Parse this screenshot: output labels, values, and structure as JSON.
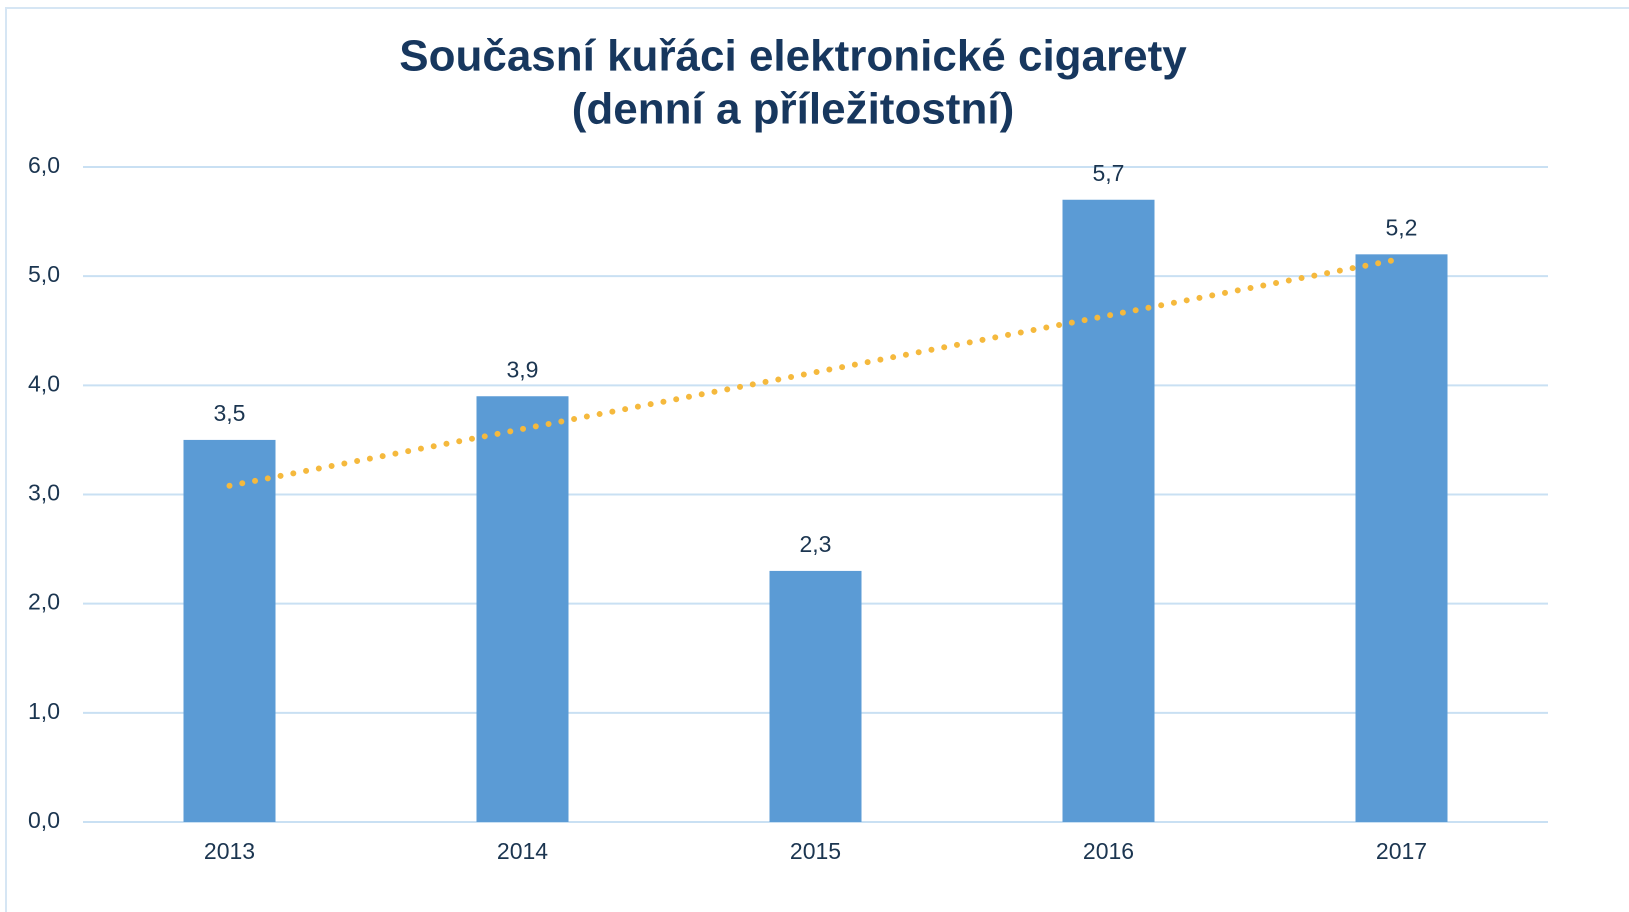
{
  "chart_data": {
    "type": "bar",
    "title": [
      "Současní kuřáci elektronické cigarety",
      "(denní a příležitostní)"
    ],
    "categories": [
      "2013",
      "2014",
      "2015",
      "2016",
      "2017"
    ],
    "values": [
      3.5,
      3.9,
      2.3,
      5.7,
      5.2
    ],
    "value_labels": [
      "3,5",
      "3,9",
      "2,3",
      "5,7",
      "5,2"
    ],
    "color": "#5b9bd5",
    "trendline": {
      "kind": "linear",
      "color": "#f5b93d"
    },
    "ylim": [
      0,
      6
    ],
    "yticks": [
      {
        "value": 0,
        "label": "0,0"
      },
      {
        "value": 1,
        "label": "1,0"
      },
      {
        "value": 2,
        "label": "2,0"
      },
      {
        "value": 3,
        "label": "3,0"
      },
      {
        "value": 4,
        "label": "4,0"
      },
      {
        "value": 5,
        "label": "5,0"
      },
      {
        "value": 6,
        "label": "6,0"
      }
    ],
    "grid": true
  }
}
